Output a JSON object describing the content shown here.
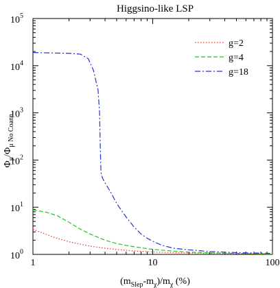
{
  "chart_data": {
    "type": "line",
    "title": "Higgsino-like LSP",
    "xlabel": {
      "parts": [
        {
          "t": "(m",
          "s": "n"
        },
        {
          "t": "Slep",
          "s": "sub"
        },
        {
          "t": "-m",
          "s": "n"
        },
        {
          "t": "χ",
          "s": "sub"
        },
        {
          "t": ")/m",
          "s": "n"
        },
        {
          "t": "χ",
          "s": "sub"
        },
        {
          "t": " (%)",
          "s": "n"
        }
      ]
    },
    "ylabel": {
      "parts": [
        {
          "t": "Φ",
          "s": "n"
        },
        {
          "t": "μ",
          "s": "sub"
        },
        {
          "t": "/Φ",
          "s": "n"
        },
        {
          "t": "μ No Coann.",
          "s": "sub"
        }
      ]
    },
    "x_scale": "log",
    "y_scale": "log",
    "xlim": [
      1,
      100
    ],
    "ylim": [
      1,
      100000
    ],
    "x_ticks": [
      {
        "value": 1,
        "label": "1"
      },
      {
        "value": 10,
        "label": "10"
      },
      {
        "value": 100,
        "label": "100"
      }
    ],
    "y_ticks": [
      {
        "value": 1,
        "base": "10",
        "exp": "0"
      },
      {
        "value": 10,
        "base": "10",
        "exp": "1"
      },
      {
        "value": 100,
        "base": "10",
        "exp": "2"
      },
      {
        "value": 1000,
        "base": "10",
        "exp": "3"
      },
      {
        "value": 10000,
        "base": "10",
        "exp": "4"
      },
      {
        "value": 100000,
        "base": "10",
        "exp": "5"
      }
    ],
    "grid": false,
    "legend_position": "top-right",
    "series": [
      {
        "name": "g=2",
        "color": "#e8302a",
        "dash": "dotted",
        "points": [
          [
            1,
            3.4
          ],
          [
            1.5,
            2.3
          ],
          [
            2,
            1.85
          ],
          [
            3,
            1.5
          ],
          [
            4,
            1.35
          ],
          [
            5,
            1.27
          ],
          [
            7,
            1.18
          ],
          [
            10,
            1.12
          ],
          [
            20,
            1.07
          ],
          [
            50,
            1.04
          ],
          [
            100,
            1.02
          ]
        ]
      },
      {
        "name": "g=4",
        "color": "#22c426",
        "dash": "dashed",
        "points": [
          [
            1,
            8.8
          ],
          [
            1.3,
            7.8
          ],
          [
            1.6,
            6.6
          ],
          [
            2,
            4.8
          ],
          [
            2.5,
            3.4
          ],
          [
            3,
            2.7
          ],
          [
            4,
            2.0
          ],
          [
            5,
            1.7
          ],
          [
            6,
            1.55
          ],
          [
            8,
            1.38
          ],
          [
            10,
            1.28
          ],
          [
            15,
            1.17
          ],
          [
            20,
            1.12
          ],
          [
            30,
            1.08
          ],
          [
            50,
            1.05
          ],
          [
            100,
            1.02
          ]
        ]
      },
      {
        "name": "g=18",
        "color": "#2233cc",
        "dash": "dashdot",
        "points": [
          [
            1,
            19000
          ],
          [
            1.5,
            18600
          ],
          [
            2,
            18300
          ],
          [
            2.5,
            17500
          ],
          [
            2.9,
            14000
          ],
          [
            3.2,
            8000
          ],
          [
            3.5,
            3000
          ],
          [
            3.6,
            1000
          ],
          [
            3.65,
            200
          ],
          [
            3.7,
            55
          ],
          [
            3.8,
            42
          ],
          [
            4,
            33
          ],
          [
            4.5,
            20
          ],
          [
            5,
            12
          ],
          [
            6,
            6.2
          ],
          [
            7,
            3.8
          ],
          [
            8,
            2.7
          ],
          [
            9,
            2.2
          ],
          [
            10,
            1.9
          ],
          [
            12,
            1.55
          ],
          [
            15,
            1.35
          ],
          [
            20,
            1.25
          ],
          [
            30,
            1.15
          ],
          [
            50,
            1.09
          ],
          [
            100,
            1.05
          ]
        ]
      }
    ]
  }
}
